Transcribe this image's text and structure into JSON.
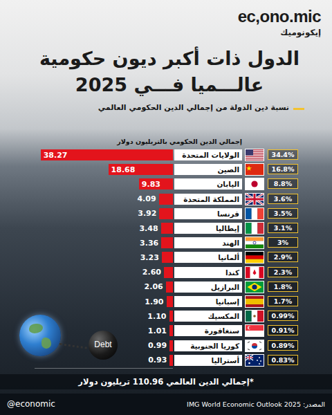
{
  "brand": {
    "name": "ec,ono.mic",
    "name_ar": "إيكونوميك"
  },
  "footer": {
    "handle": "@economic",
    "source": "المصدر: IMG World Economic Outlook 2025"
  },
  "chart_data": {
    "type": "bar",
    "orientation": "horizontal",
    "title": "الدول ذات أكبر ديون حكومية\nعالـــميا فـــي 2025",
    "subtitle": "نسبة دين الدولة من إجمالي الدين الحكومي العالمي",
    "x_label": "إجمالي الدين الحكومي بالتريليون دولار",
    "categories": [
      "الولايات المتحدة",
      "الصين",
      "اليابان",
      "المملكة المتحدة",
      "فرنسا",
      "إيطاليا",
      "الهند",
      "ألمانيا",
      "كندا",
      "البرازيل",
      "إسبانيا",
      "المكسيك",
      "سنغافورة",
      "كوريا الجنوبية",
      "أستراليا"
    ],
    "values": [
      38.27,
      18.68,
      9.83,
      4.09,
      3.92,
      3.48,
      3.36,
      3.23,
      2.6,
      2.06,
      1.9,
      1.1,
      1.01,
      0.99,
      0.93
    ],
    "value_labels": [
      "38.27",
      "18.68",
      "9.83",
      "4.09",
      "3.92",
      "3.48",
      "3.36",
      "3.23",
      "2.60",
      "2.06",
      "1.90",
      "1.10",
      "1.01",
      "0.99",
      "0.93"
    ],
    "shares": [
      34.4,
      16.8,
      8.8,
      3.6,
      3.5,
      3.1,
      3,
      2.9,
      2.3,
      1.8,
      1.7,
      0.99,
      0.91,
      0.89,
      0.83
    ],
    "share_labels": [
      "34.4%",
      "16.8%",
      "8.8%",
      "3.6%",
      "3.5%",
      "3.1%",
      "3%",
      "2.9%",
      "2.3%",
      "1.8%",
      "1.7%",
      "0.99%",
      "0.91%",
      "0.89%",
      "0.83%"
    ],
    "xlim": [
      0,
      40
    ],
    "color": "#e3141c",
    "data_labels": true,
    "tick_labels": false,
    "grid": false,
    "annotations": [
      "*إجمالي الدين العالمي 110.96 تريليون دولار",
      "Debt"
    ]
  }
}
